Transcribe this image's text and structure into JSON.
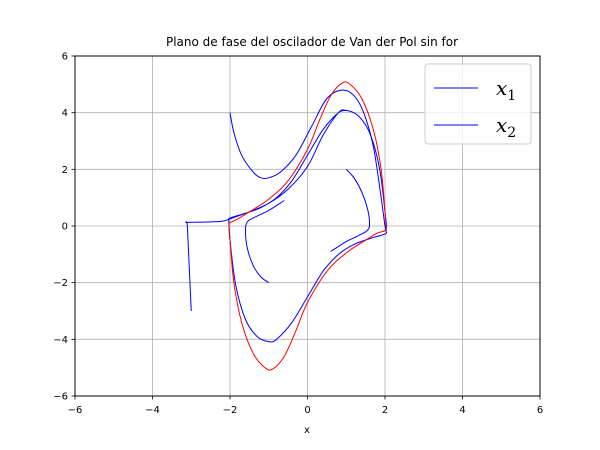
{
  "chart_data": {
    "type": "line",
    "title": "Plano de fase del oscilador de Van der Pol sin for",
    "xlabel": "x",
    "ylabel": "",
    "xlim": [
      -6,
      6
    ],
    "ylim": [
      -6,
      6
    ],
    "xticks": [
      -6,
      -4,
      -2,
      0,
      2,
      4,
      6
    ],
    "yticks": [
      -6,
      -4,
      -2,
      0,
      2,
      4,
      6
    ],
    "xtick_labels": [
      "−6",
      "−4",
      "−2",
      "0",
      "2",
      "4",
      "6"
    ],
    "ytick_labels": [
      "−6",
      "−4",
      "−2",
      "0",
      "2",
      "4",
      "6"
    ],
    "grid": true,
    "legend_position": "top-right",
    "legend": [
      {
        "label": "x",
        "sub": "1",
        "color": "#0000ff"
      },
      {
        "label": "x",
        "sub": "2",
        "color": "#0000ff"
      }
    ],
    "series": [
      {
        "color": "#0000ff",
        "points": [
          [
            -3,
            -3
          ],
          [
            -3.05,
            -1.5
          ],
          [
            -3.1,
            0
          ],
          [
            -3.1,
            0.12
          ],
          [
            -2.6,
            0.14
          ],
          [
            -2.2,
            0.17
          ],
          [
            -1.9,
            0.3
          ],
          [
            -1.5,
            0.5
          ],
          [
            -1,
            0.8
          ],
          [
            -0.5,
            1.3
          ],
          [
            0,
            2.1
          ],
          [
            0.4,
            3.2
          ],
          [
            0.8,
            4
          ],
          [
            1,
            4.08
          ],
          [
            1.3,
            3.9
          ],
          [
            1.6,
            3.3
          ],
          [
            1.85,
            2.1
          ],
          [
            2,
            0.5
          ],
          [
            2.03,
            -0.15
          ],
          [
            2,
            -0.28
          ],
          [
            1.6,
            -0.45
          ],
          [
            1.2,
            -0.65
          ],
          [
            0.8,
            -1.0
          ],
          [
            0.4,
            -1.6
          ],
          [
            0,
            -2.5
          ],
          [
            -0.4,
            -3.4
          ],
          [
            -0.8,
            -4.0
          ],
          [
            -1,
            -4.08
          ],
          [
            -1.3,
            -3.9
          ],
          [
            -1.6,
            -3.3
          ],
          [
            -1.85,
            -2.1
          ],
          [
            -2,
            -0.5
          ],
          [
            -2.03,
            0.15
          ],
          [
            -2,
            0.28
          ],
          [
            -1.6,
            0.45
          ],
          [
            -1.2,
            0.65
          ],
          [
            -0.8,
            1.0
          ],
          [
            -0.4,
            1.6
          ],
          [
            0,
            2.5
          ],
          [
            0.4,
            3.4
          ],
          [
            0.8,
            4.0
          ],
          [
            1,
            4.08
          ]
        ]
      },
      {
        "color": "#0000ff",
        "points": [
          [
            -2,
            4
          ],
          [
            -1.9,
            3.3
          ],
          [
            -1.7,
            2.5
          ],
          [
            -1.4,
            1.9
          ],
          [
            -1.2,
            1.7
          ],
          [
            -1,
            1.7
          ],
          [
            -0.7,
            1.9
          ],
          [
            -0.3,
            2.5
          ],
          [
            0.1,
            3.5
          ],
          [
            0.5,
            4.5
          ],
          [
            0.9,
            4.8
          ],
          [
            1.2,
            4.6
          ],
          [
            1.45,
            4.0
          ],
          [
            1.7,
            2.8
          ],
          [
            1.9,
            1.0
          ],
          [
            2.0,
            0
          ],
          [
            2.03,
            -0.15
          ]
        ]
      },
      {
        "color": "#0000ff",
        "points": [
          [
            1,
            2
          ],
          [
            1.2,
            1.7
          ],
          [
            1.4,
            1.2
          ],
          [
            1.55,
            0.6
          ],
          [
            1.6,
            0.1
          ],
          [
            1.55,
            -0.15
          ],
          [
            1.3,
            -0.35
          ],
          [
            1.0,
            -0.55
          ],
          [
            0.6,
            -0.9
          ]
        ]
      },
      {
        "color": "#0000ff",
        "points": [
          [
            -1,
            -2
          ],
          [
            -1.2,
            -1.8
          ],
          [
            -1.4,
            -1.4
          ],
          [
            -1.55,
            -0.8
          ],
          [
            -1.6,
            -0.2
          ],
          [
            -1.55,
            0.15
          ],
          [
            -1.3,
            0.35
          ],
          [
            -1.0,
            0.55
          ],
          [
            -0.6,
            0.9
          ]
        ]
      },
      {
        "color": "#ff0000",
        "points": [
          [
            -2.03,
            0.1
          ],
          [
            -1.8,
            0.25
          ],
          [
            -1.5,
            0.5
          ],
          [
            -1.0,
            0.95
          ],
          [
            -0.5,
            1.6
          ],
          [
            0,
            2.7
          ],
          [
            0.3,
            3.7
          ],
          [
            0.6,
            4.6
          ],
          [
            0.9,
            5.05
          ],
          [
            1.1,
            5.0
          ],
          [
            1.4,
            4.5
          ],
          [
            1.7,
            3.4
          ],
          [
            1.9,
            2.0
          ],
          [
            2.0,
            0.5
          ],
          [
            2.03,
            -0.1
          ],
          [
            1.8,
            -0.25
          ],
          [
            1.5,
            -0.5
          ],
          [
            1.0,
            -0.95
          ],
          [
            0.5,
            -1.6
          ],
          [
            0,
            -2.7
          ],
          [
            -0.3,
            -3.7
          ],
          [
            -0.6,
            -4.6
          ],
          [
            -0.9,
            -5.05
          ],
          [
            -1.1,
            -5.0
          ],
          [
            -1.4,
            -4.5
          ],
          [
            -1.7,
            -3.4
          ],
          [
            -1.9,
            -2.0
          ],
          [
            -2.0,
            -0.5
          ],
          [
            -2.03,
            0.1
          ]
        ]
      }
    ]
  }
}
